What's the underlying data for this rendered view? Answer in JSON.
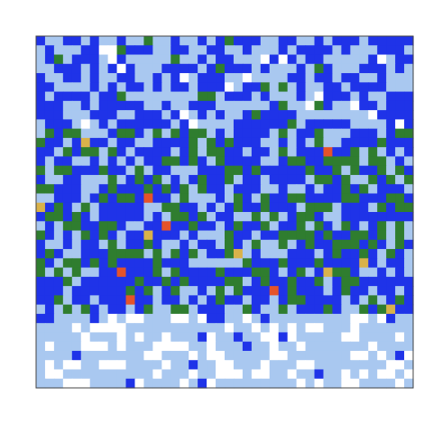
{
  "chart_data": {
    "type": "heatmap",
    "title": "",
    "xlabel": "",
    "ylabel": "",
    "grid": false,
    "legend": "none",
    "colormap": [
      "#ffffff",
      "#a9c8f0",
      "#1f33e8",
      "#2f7d2f",
      "#d9b24a",
      "#e5532a"
    ],
    "rows": 38,
    "cols": 42,
    "values": [],
    "intensity_profile": {
      "top": 0.45,
      "middle": 0.62,
      "bottom": 0.28
    }
  }
}
